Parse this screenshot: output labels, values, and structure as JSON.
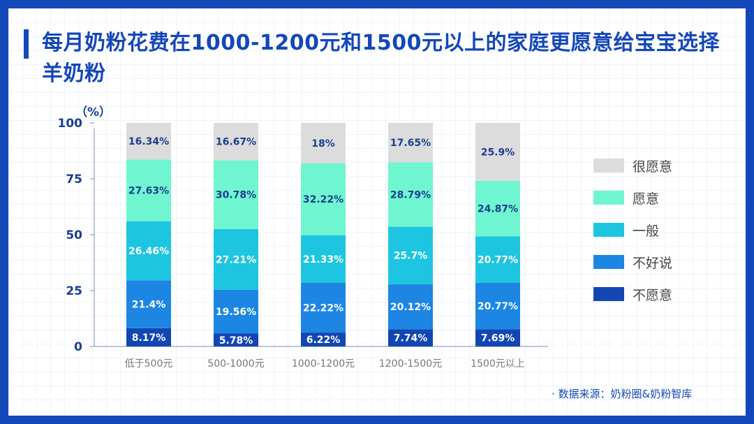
{
  "title": "每月奶粉花费在1000-1200元和1500元以上的家庭更愿意给宝宝选择羊奶粉",
  "source": "· 数据来源：奶粉圈&奶粉智库",
  "chart_data": {
    "type": "bar",
    "stacked": true,
    "ylabel": "（%）",
    "ylim": [
      0,
      100
    ],
    "yticks": [
      0,
      25,
      50,
      75,
      100
    ],
    "categories": [
      "低于500元",
      "500-1000元",
      "1000-1200元",
      "1200-1500元",
      "1500元以上"
    ],
    "series": [
      {
        "name": "不愿意",
        "color": "#1246b2",
        "textColor": "#ffffff",
        "values": [
          8.17,
          5.78,
          6.22,
          7.74,
          7.69
        ],
        "labels": [
          "8.17%",
          "5.78%",
          "6.22%",
          "7.74%",
          "7.69%"
        ]
      },
      {
        "name": "不好说",
        "color": "#1c86e2",
        "textColor": "#ffffff",
        "values": [
          21.4,
          19.56,
          22.22,
          20.12,
          20.77
        ],
        "labels": [
          "21.4%",
          "19.56%",
          "22.22%",
          "20.12%",
          "20.77%"
        ]
      },
      {
        "name": "一般",
        "color": "#1ec5e0",
        "textColor": "#ffffff",
        "values": [
          26.46,
          27.21,
          21.33,
          25.7,
          20.77
        ],
        "labels": [
          "26.46%",
          "27.21%",
          "21.33%",
          "25.7%",
          "20.77%"
        ]
      },
      {
        "name": "愿意",
        "color": "#6ff5cf",
        "textColor": "#1b3e8f",
        "values": [
          27.63,
          30.78,
          32.22,
          28.79,
          24.87
        ],
        "labels": [
          "27.63%",
          "30.78%",
          "32.22%",
          "28.79%",
          "24.87%"
        ]
      },
      {
        "name": "很愿意",
        "color": "#dcdcdc",
        "textColor": "#1b3e8f",
        "values": [
          16.34,
          16.67,
          18,
          17.65,
          25.9
        ],
        "labels": [
          "16.34%",
          "16.67%",
          "18%",
          "17.65%",
          "25.9%"
        ]
      }
    ],
    "legend_position": "right",
    "legend_order": [
      "很愿意",
      "愿意",
      "一般",
      "不好说",
      "不愿意"
    ]
  }
}
